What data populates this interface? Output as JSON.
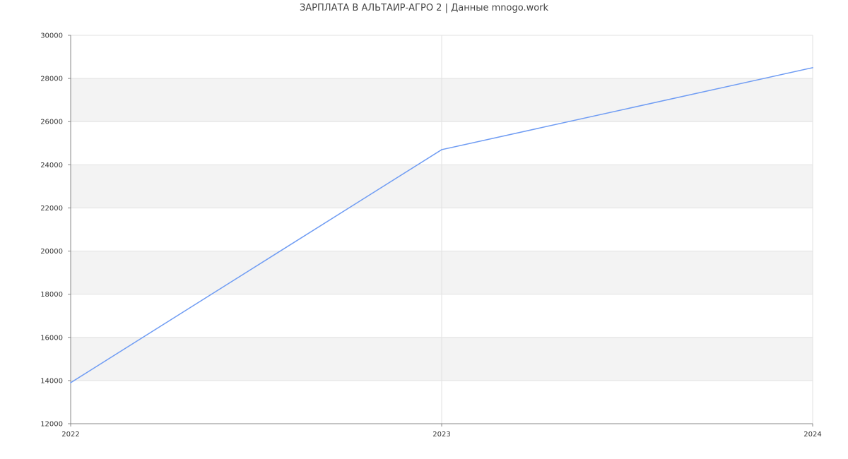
{
  "chart_data": {
    "type": "line",
    "title": "ЗАРПЛАТА В АЛЬТАИР-АГРО 2 | Данные mnogo.work",
    "xlabel": "",
    "ylabel": "",
    "categories": [
      "2022",
      "2023",
      "2024"
    ],
    "series": [
      {
        "values": [
          13900,
          24700,
          28500
        ],
        "color": "#6f9cf3"
      }
    ],
    "ylim": [
      12000,
      30000
    ],
    "yticks": [
      "12000",
      "14000",
      "16000",
      "18000",
      "20000",
      "22000",
      "24000",
      "26000",
      "28000",
      "30000"
    ],
    "grid": true,
    "band_color": "#f3f3f3"
  }
}
